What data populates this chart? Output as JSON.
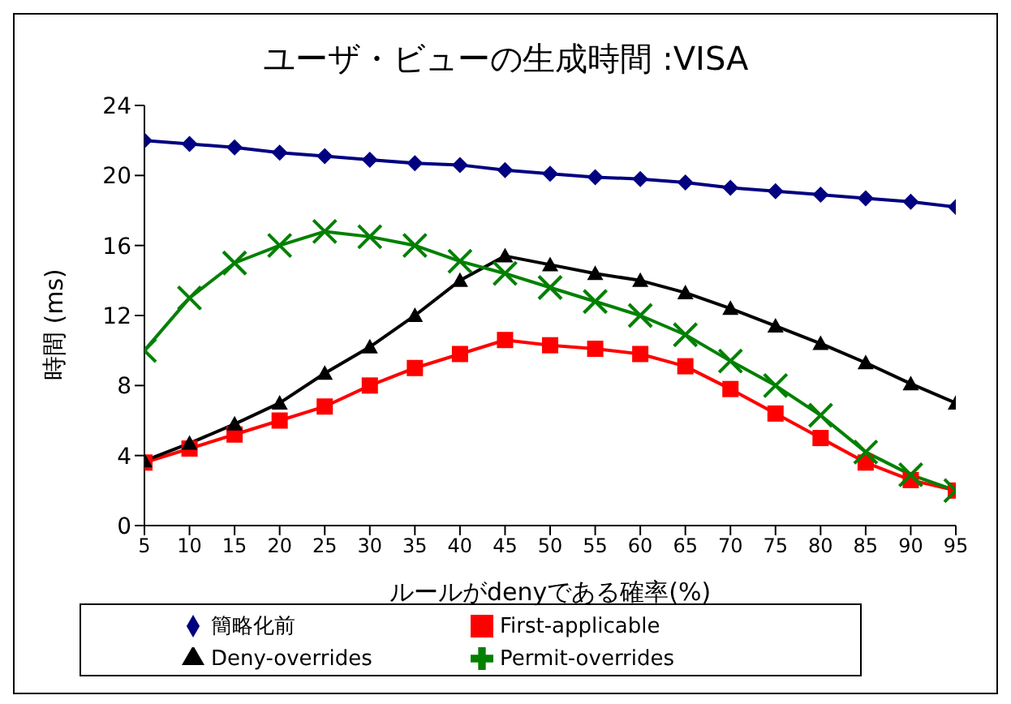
{
  "chart_data": {
    "type": "line",
    "title": "ユーザ・ビューの生成時間 :VISA",
    "xlabel": "ルールがdenyである確率(%)",
    "ylabel": "時間 (ms)",
    "categories": [
      "5",
      "10",
      "15",
      "20",
      "25",
      "30",
      "35",
      "40",
      "45",
      "50",
      "55",
      "60",
      "65",
      "70",
      "75",
      "80",
      "85",
      "90",
      "95"
    ],
    "ylim": [
      0,
      24
    ],
    "yticks": [
      0,
      4,
      8,
      12,
      16,
      20,
      24
    ],
    "grid": false,
    "legend": "bottom",
    "series": [
      {
        "name": "簡略化前",
        "color": "#000080",
        "marker": "diamond",
        "values": [
          22,
          21.8,
          21.6,
          21.3,
          21.1,
          20.9,
          20.7,
          20.6,
          20.3,
          20.1,
          19.9,
          19.8,
          19.6,
          19.3,
          19.1,
          18.9,
          18.7,
          18.5,
          18.2
        ]
      },
      {
        "name": "First-applicable",
        "color": "#ff0000",
        "marker": "square",
        "values": [
          3.6,
          4.4,
          5.2,
          6,
          6.8,
          8,
          9,
          9.8,
          10.6,
          10.3,
          10.1,
          9.8,
          9.1,
          7.8,
          6.4,
          5,
          3.6,
          2.6,
          2
        ]
      },
      {
        "name": "Deny-overrides",
        "color": "#000000",
        "marker": "triangle",
        "values": [
          3.7,
          4.7,
          5.8,
          7,
          8.7,
          10.2,
          12,
          14,
          15.4,
          14.9,
          14.4,
          14,
          13.3,
          12.4,
          11.4,
          10.4,
          9.3,
          8.1,
          7
        ]
      },
      {
        "name": "Permit-overrides",
        "color": "#008000",
        "marker": "cross",
        "values": [
          10,
          13,
          15,
          16,
          16.8,
          16.5,
          16,
          15.1,
          14.4,
          13.6,
          12.8,
          12,
          10.9,
          9.4,
          8,
          6.3,
          4.2,
          2.9,
          2
        ]
      }
    ]
  }
}
